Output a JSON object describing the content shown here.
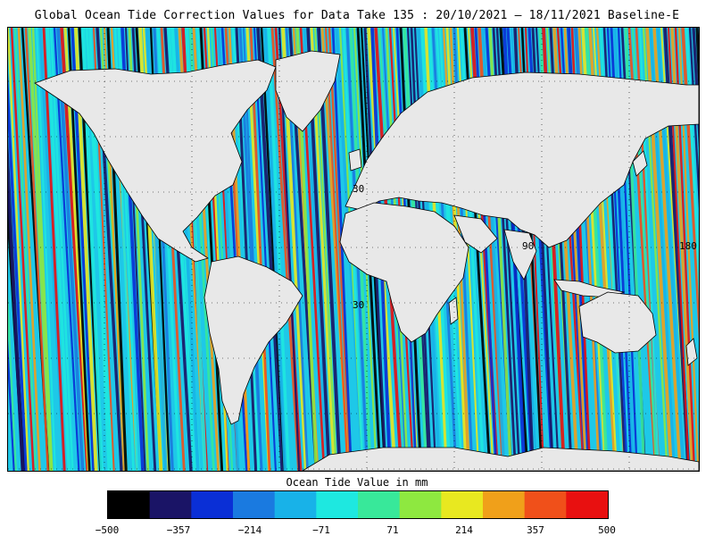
{
  "title": "Global Ocean Tide Correction Values for Data Take 135 : 20/10/2021 – 18/11/2021 Baseline-E",
  "map": {
    "projection": "equirectangular",
    "land_color": "#e8e8e8",
    "coastline_color": "#000000",
    "grid_style": "dotted",
    "grid_labels": [
      "30",
      "90",
      "30",
      "180"
    ]
  },
  "colorbar": {
    "title": "Ocean Tide Value in mm",
    "range": [
      -500,
      500
    ],
    "ticks": [
      "−500",
      "−357",
      "−214",
      "−71",
      "71",
      "214",
      "357",
      "500"
    ],
    "colors": [
      "#000000",
      "#1a1466",
      "#0a2fd6",
      "#1a7ae0",
      "#18b2e8",
      "#1ee8e0",
      "#38e89a",
      "#8ee840",
      "#e8e820",
      "#f0a01a",
      "#f0501a",
      "#e81010"
    ]
  }
}
